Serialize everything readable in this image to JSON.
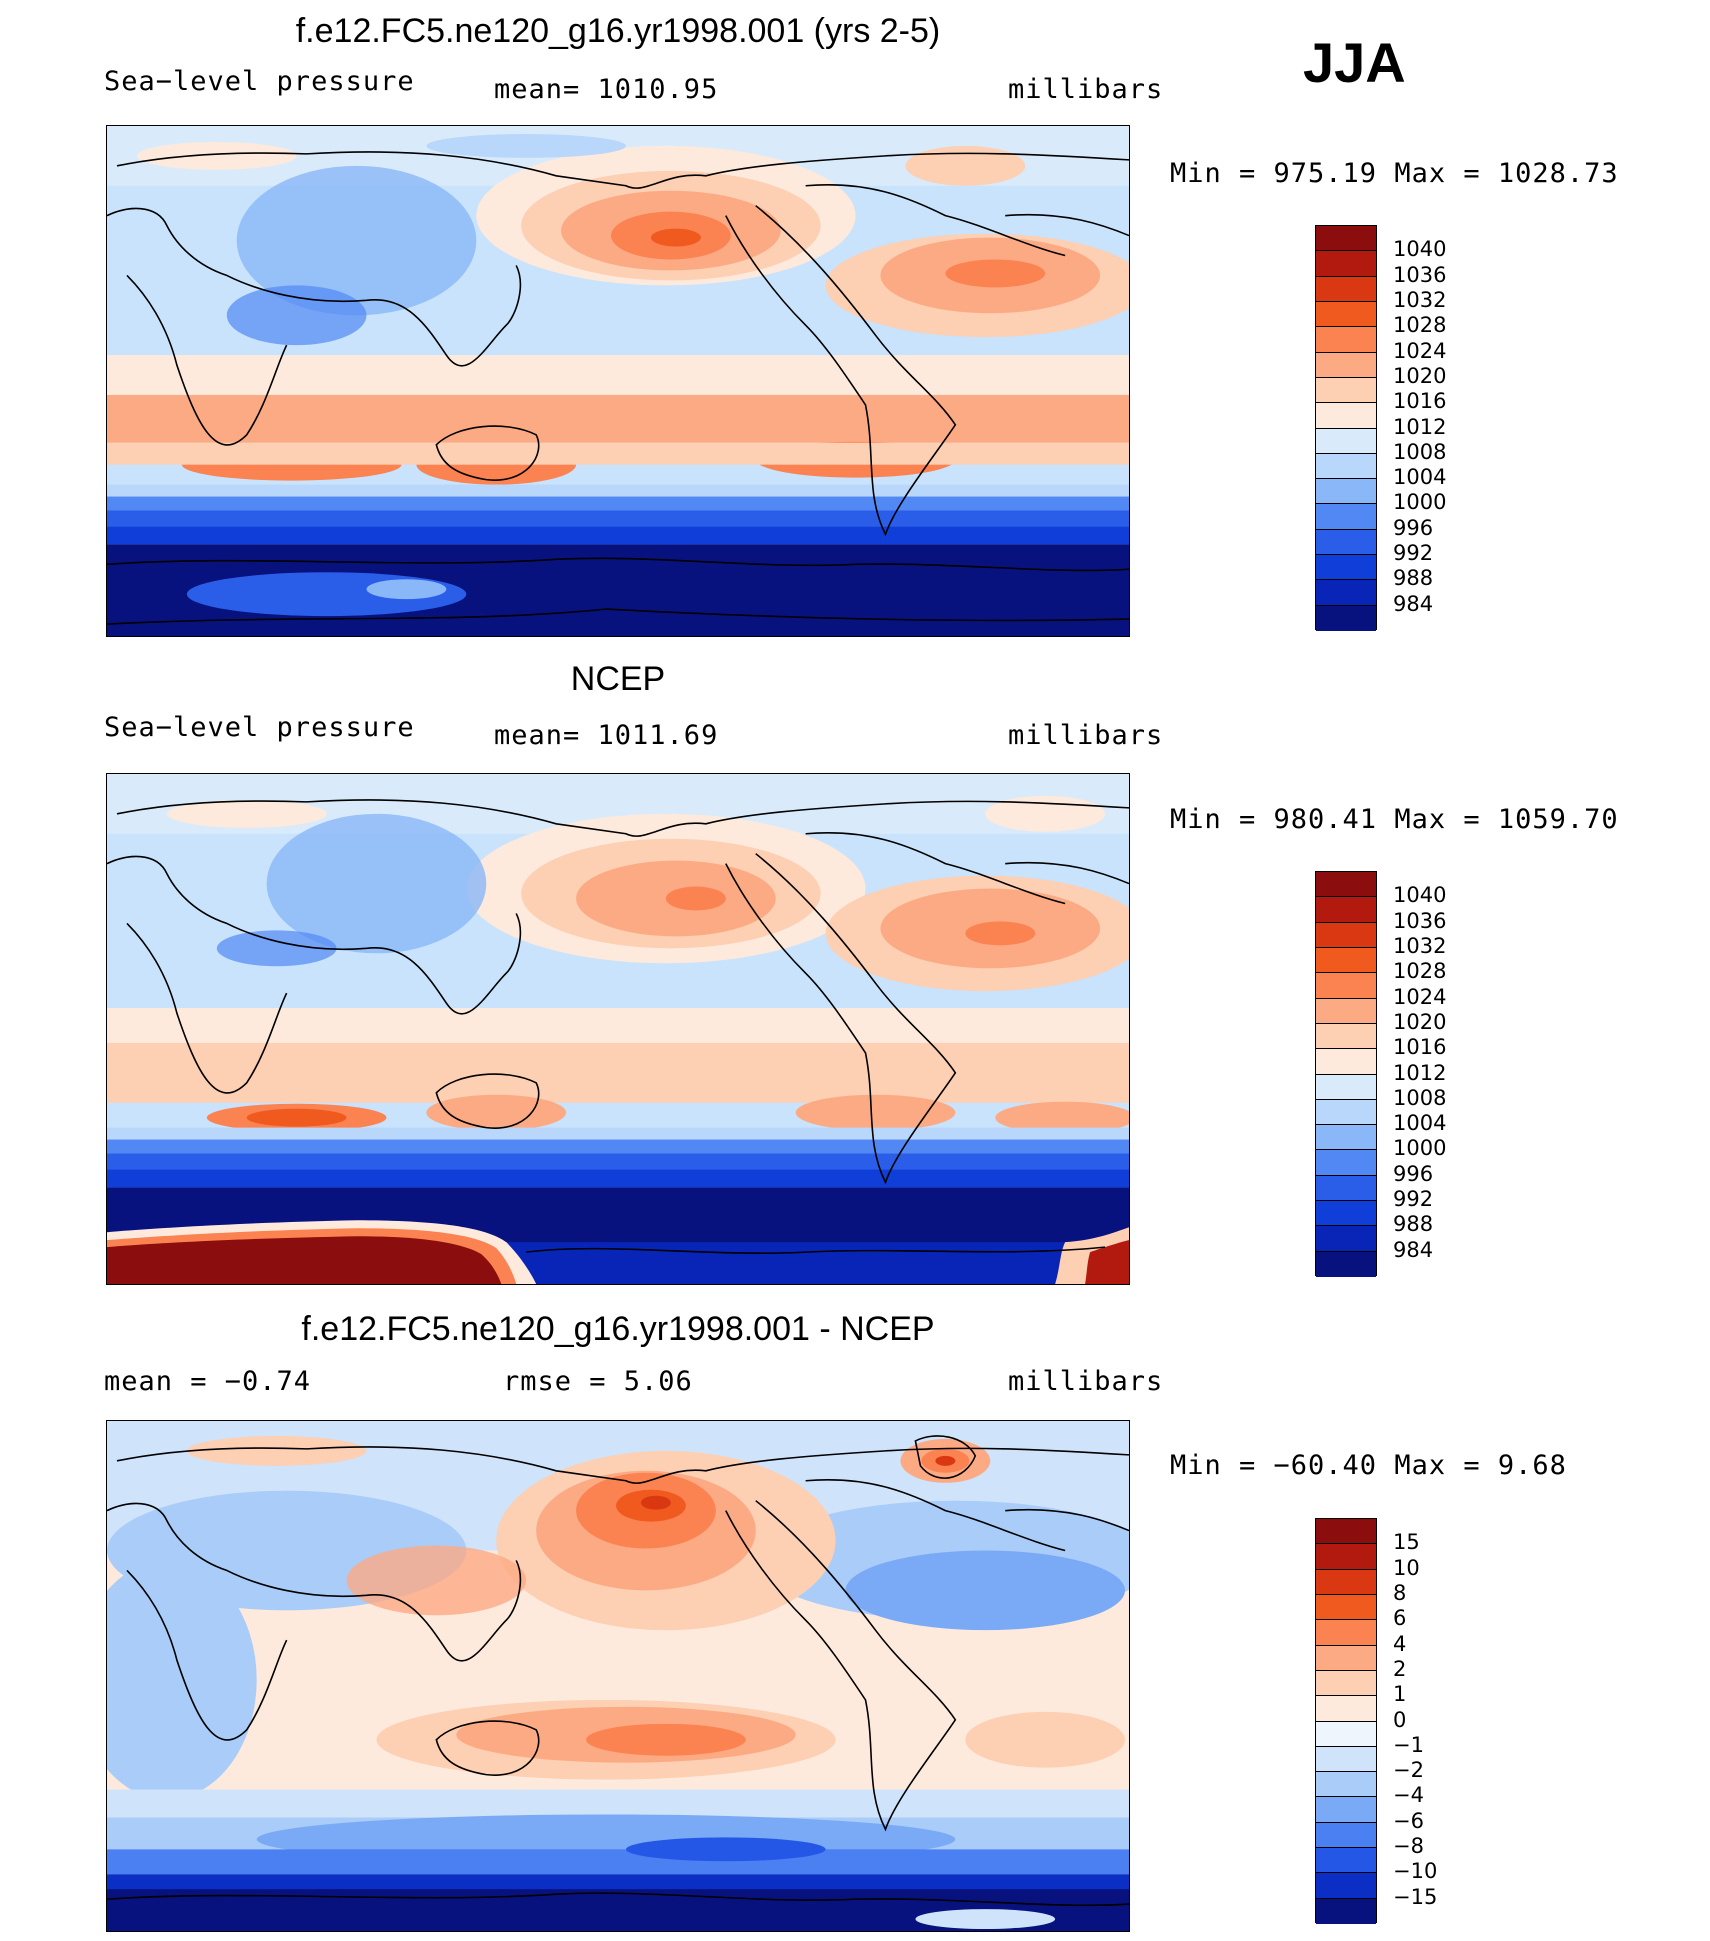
{
  "season": "JJA",
  "panels": [
    {
      "title": "f.e12.FC5.ne120_g16.yr1998.001 (yrs 2-5)",
      "left_label": "Sea−level pressure",
      "center_label": "mean=  1010.95",
      "units": "millibars",
      "minmax": "Min  =  975.19  Max  =  1028.73",
      "colorbar": {
        "labels": [
          "1040",
          "1036",
          "1032",
          "1028",
          "1024",
          "1020",
          "1016",
          "1012",
          "1008",
          "1004",
          "1000",
          "996",
          "992",
          "988",
          "984"
        ],
        "colors": [
          "#8b0d0d",
          "#b31a0f",
          "#d93812",
          "#f05a1f",
          "#fb8251",
          "#fcaa84",
          "#fdcfb3",
          "#fdeadd",
          "#d9ebfb",
          "#b9d7fb",
          "#8ab7f8",
          "#5188f4",
          "#2a5ee8",
          "#0f3fd8",
          "#0925b8",
          "#07127e"
        ]
      },
      "map_background": "#c8e3fb"
    },
    {
      "title": "NCEP",
      "left_label": "Sea−level pressure",
      "center_label": "mean=  1011.69",
      "units": "millibars",
      "minmax": "Min  =  980.41  Max  =  1059.70",
      "colorbar": {
        "labels": [
          "1040",
          "1036",
          "1032",
          "1028",
          "1024",
          "1020",
          "1016",
          "1012",
          "1008",
          "1004",
          "1000",
          "996",
          "992",
          "988",
          "984"
        ],
        "colors": [
          "#8b0d0d",
          "#b31a0f",
          "#d93812",
          "#f05a1f",
          "#fb8251",
          "#fcaa84",
          "#fdcfb3",
          "#fdeadd",
          "#d9ebfb",
          "#b9d7fb",
          "#8ab7f8",
          "#5188f4",
          "#2a5ee8",
          "#0f3fd8",
          "#0925b8",
          "#07127e"
        ]
      },
      "map_background": "#c8e3fb"
    },
    {
      "title": "f.e12.FC5.ne120_g16.yr1998.001 - NCEP",
      "left_label": "mean  =     −0.74",
      "center_label": "rmse  =     5.06",
      "units": "millibars",
      "minmax": "Min  =  −60.40  Max  =      9.68",
      "colorbar": {
        "labels": [
          "15",
          "10",
          "8",
          "6",
          "4",
          "2",
          "1",
          "0",
          "−1",
          "−2",
          "−4",
          "−6",
          "−8",
          "−10",
          "−15"
        ],
        "colors": [
          "#8b0d0d",
          "#b31a0f",
          "#d93812",
          "#f05a1f",
          "#fb8251",
          "#fcaa84",
          "#fdcfb3",
          "#fdeadd",
          "#eef5fd",
          "#cfe3fb",
          "#a9ccf9",
          "#7aaaf6",
          "#4a80f2",
          "#2557e6",
          "#0b2fc4",
          "#07127e"
        ]
      },
      "map_background": "#fdeadd"
    }
  ]
}
